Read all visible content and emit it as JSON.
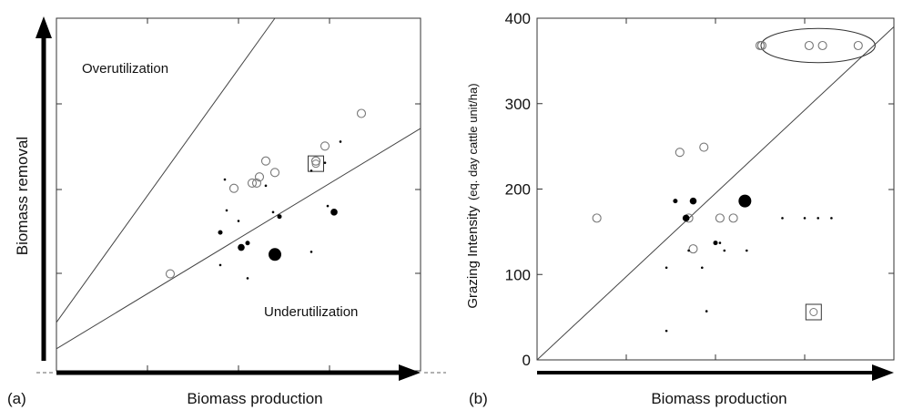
{
  "chart_data": [
    {
      "panel_label": "(a)",
      "type": "scatter",
      "xlabel": "Biomass production",
      "ylabel": "Biomass removal",
      "xlim": [
        0,
        4
      ],
      "ylim": [
        0,
        4
      ],
      "annotations": {
        "over": "Overutilization",
        "under": "Underutilization"
      },
      "lines": [
        {
          "name": "overutilization-line",
          "points": [
            [
              0,
              0.55
            ],
            [
              2.4,
              4.0
            ]
          ]
        },
        {
          "name": "underutilization-line",
          "points": [
            [
              0,
              0.25
            ],
            [
              4.0,
              2.75
            ]
          ]
        }
      ],
      "series": [
        {
          "marker": "open-circle",
          "points": [
            [
              1.25,
              1.1
            ],
            [
              1.95,
              2.07
            ],
            [
              2.15,
              2.13
            ],
            [
              2.2,
              2.13
            ],
            [
              2.23,
              2.2
            ],
            [
              2.3,
              2.38
            ],
            [
              2.4,
              2.25
            ],
            [
              2.85,
              2.38
            ],
            [
              2.95,
              2.55
            ],
            [
              3.35,
              2.92
            ]
          ]
        },
        {
          "marker": "open-square",
          "points": [
            [
              2.85,
              2.35
            ]
          ]
        },
        {
          "marker": "filled-circle-large",
          "points": [
            [
              2.4,
              1.32
            ]
          ]
        },
        {
          "marker": "filled-circle",
          "points": [
            [
              2.03,
              1.4
            ],
            [
              3.05,
              1.8
            ]
          ]
        },
        {
          "marker": "filled-dot",
          "points": [
            [
              1.8,
              1.57
            ],
            [
              2.1,
              1.45
            ],
            [
              2.45,
              1.75
            ]
          ]
        },
        {
          "marker": "small-dot",
          "points": [
            [
              1.85,
              2.17
            ],
            [
              2.3,
              2.1
            ],
            [
              2.8,
              2.27
            ],
            [
              2.95,
              2.36
            ],
            [
              3.12,
              2.6
            ],
            [
              1.87,
              1.82
            ],
            [
              2.0,
              1.7
            ],
            [
              2.38,
              1.8
            ],
            [
              2.98,
              1.87
            ],
            [
              1.8,
              1.2
            ],
            [
              2.1,
              1.05
            ],
            [
              2.8,
              1.35
            ]
          ]
        }
      ]
    },
    {
      "panel_label": "(b)",
      "type": "scatter",
      "xlabel": "Biomass production",
      "ylabel": "Grazing Intensity",
      "ylabel_unit": "(eq. day cattle unit/ha)",
      "ylim": [
        0,
        400
      ],
      "yticks": [
        0,
        100,
        200,
        300,
        400
      ],
      "xlim": [
        0,
        4
      ],
      "lines": [
        {
          "name": "diagonal-line",
          "points": [
            [
              0,
              0
            ],
            [
              4.0,
              390
            ]
          ]
        }
      ],
      "highlight_ellipse": {
        "center": [
          3.15,
          368
        ],
        "rx": 0.64,
        "ry": 20
      },
      "series": [
        {
          "marker": "open-circle",
          "points": [
            [
              2.5,
              368
            ],
            [
              2.52,
              368
            ],
            [
              3.05,
              368
            ],
            [
              3.2,
              368
            ],
            [
              3.6,
              368
            ],
            [
              0.67,
              166
            ],
            [
              1.6,
              243
            ],
            [
              1.87,
              249
            ],
            [
              2.05,
              166
            ],
            [
              1.75,
              130
            ],
            [
              2.2,
              166
            ],
            [
              1.7,
              166
            ]
          ]
        },
        {
          "marker": "open-square",
          "points": [
            [
              3.1,
              56
            ]
          ]
        },
        {
          "marker": "filled-circle-large",
          "points": [
            [
              2.33,
              186
            ]
          ]
        },
        {
          "marker": "filled-circle",
          "points": [
            [
              1.67,
              166
            ],
            [
              1.75,
              186
            ]
          ]
        },
        {
          "marker": "filled-dot",
          "points": [
            [
              1.55,
              186
            ],
            [
              2.0,
              137
            ]
          ]
        },
        {
          "marker": "small-dot",
          "points": [
            [
              2.75,
              166
            ],
            [
              3.0,
              166
            ],
            [
              3.15,
              166
            ],
            [
              3.3,
              166
            ],
            [
              1.7,
              128
            ],
            [
              2.1,
              128
            ],
            [
              2.35,
              128
            ],
            [
              1.45,
              108
            ],
            [
              1.85,
              108
            ],
            [
              1.9,
              57
            ],
            [
              1.45,
              34
            ],
            [
              2.05,
              137
            ]
          ]
        }
      ]
    }
  ]
}
